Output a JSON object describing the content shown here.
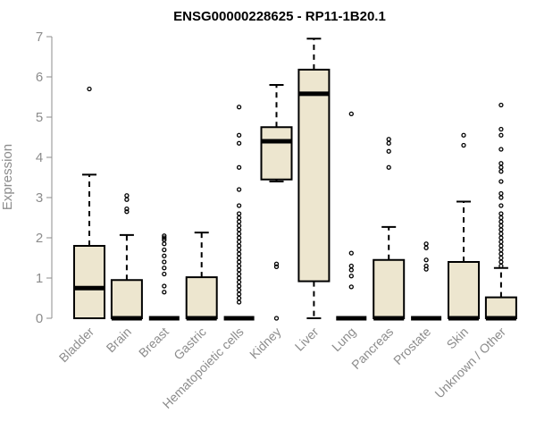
{
  "chart_data": {
    "type": "boxplot",
    "title": "ENSG00000228625 - RP11-1B20.1",
    "ylabel": "Expression",
    "xlabel": "",
    "ylim": [
      0,
      7
    ],
    "yticks": [
      0,
      1,
      2,
      3,
      4,
      5,
      6,
      7
    ],
    "box_fill": "#ede6cf",
    "categories": [
      "Bladder",
      "Brain",
      "Breast",
      "Gastric",
      "Hematopoietic cells",
      "Kidney",
      "Liver",
      "Lung",
      "Pancreas",
      "Prostate",
      "Skin",
      "Unknown / Other"
    ],
    "boxes": [
      {
        "min": 0,
        "q1": 0,
        "median": 0.75,
        "q3": 1.8,
        "max": 3.57,
        "outliers": [
          5.7
        ]
      },
      {
        "min": 0,
        "q1": 0,
        "median": 0,
        "q3": 0.95,
        "max": 2.07,
        "outliers": [
          2.65,
          2.72,
          2.95,
          3.05
        ]
      },
      {
        "min": 0,
        "q1": 0,
        "median": 0,
        "q3": 0,
        "max": 0,
        "outliers": [
          0.65,
          0.8,
          1.1,
          1.25,
          1.4,
          1.55,
          1.7,
          1.85,
          1.95,
          2.0,
          2.05
        ]
      },
      {
        "min": 0,
        "q1": 0,
        "median": 0,
        "q3": 1.02,
        "max": 2.13,
        "outliers": []
      },
      {
        "min": 0,
        "q1": 0,
        "median": 0,
        "q3": 0,
        "max": 0,
        "outliers": [
          0.4,
          0.5,
          0.6,
          0.7,
          0.8,
          0.9,
          1.0,
          1.1,
          1.2,
          1.3,
          1.4,
          1.5,
          1.6,
          1.7,
          1.8,
          1.9,
          2.0,
          2.1,
          2.2,
          2.3,
          2.4,
          2.5,
          2.6,
          2.8,
          3.2,
          3.75,
          4.35,
          4.55,
          5.25
        ]
      },
      {
        "min": 3.4,
        "q1": 3.45,
        "median": 4.4,
        "q3": 4.75,
        "max": 5.8,
        "outliers": [
          0,
          1.28,
          1.35
        ]
      },
      {
        "min": 0,
        "q1": 0.92,
        "median": 5.58,
        "q3": 6.18,
        "max": 6.95,
        "outliers": []
      },
      {
        "min": 0,
        "q1": 0,
        "median": 0,
        "q3": 0,
        "max": 0,
        "outliers": [
          0.78,
          1.05,
          1.2,
          1.3,
          1.62,
          5.08
        ]
      },
      {
        "min": 0,
        "q1": 0,
        "median": 0,
        "q3": 1.45,
        "max": 2.27,
        "outliers": [
          3.75,
          4.15,
          4.35,
          4.45
        ]
      },
      {
        "min": 0,
        "q1": 0,
        "median": 0,
        "q3": 0,
        "max": 0,
        "outliers": [
          1.22,
          1.3,
          1.45,
          1.75,
          1.85
        ]
      },
      {
        "min": 0,
        "q1": 0,
        "median": 0,
        "q3": 1.4,
        "max": 2.9,
        "outliers": [
          4.3,
          4.55
        ]
      },
      {
        "min": 0,
        "q1": 0,
        "median": 0,
        "q3": 0.52,
        "max": 1.25,
        "outliers": [
          1.3,
          1.4,
          1.5,
          1.6,
          1.7,
          1.8,
          1.9,
          2.0,
          2.1,
          2.2,
          2.3,
          2.4,
          2.5,
          2.6,
          2.8,
          3.0,
          3.1,
          3.4,
          3.65,
          3.75,
          3.85,
          4.2,
          4.55,
          4.7,
          5.3
        ]
      }
    ]
  }
}
